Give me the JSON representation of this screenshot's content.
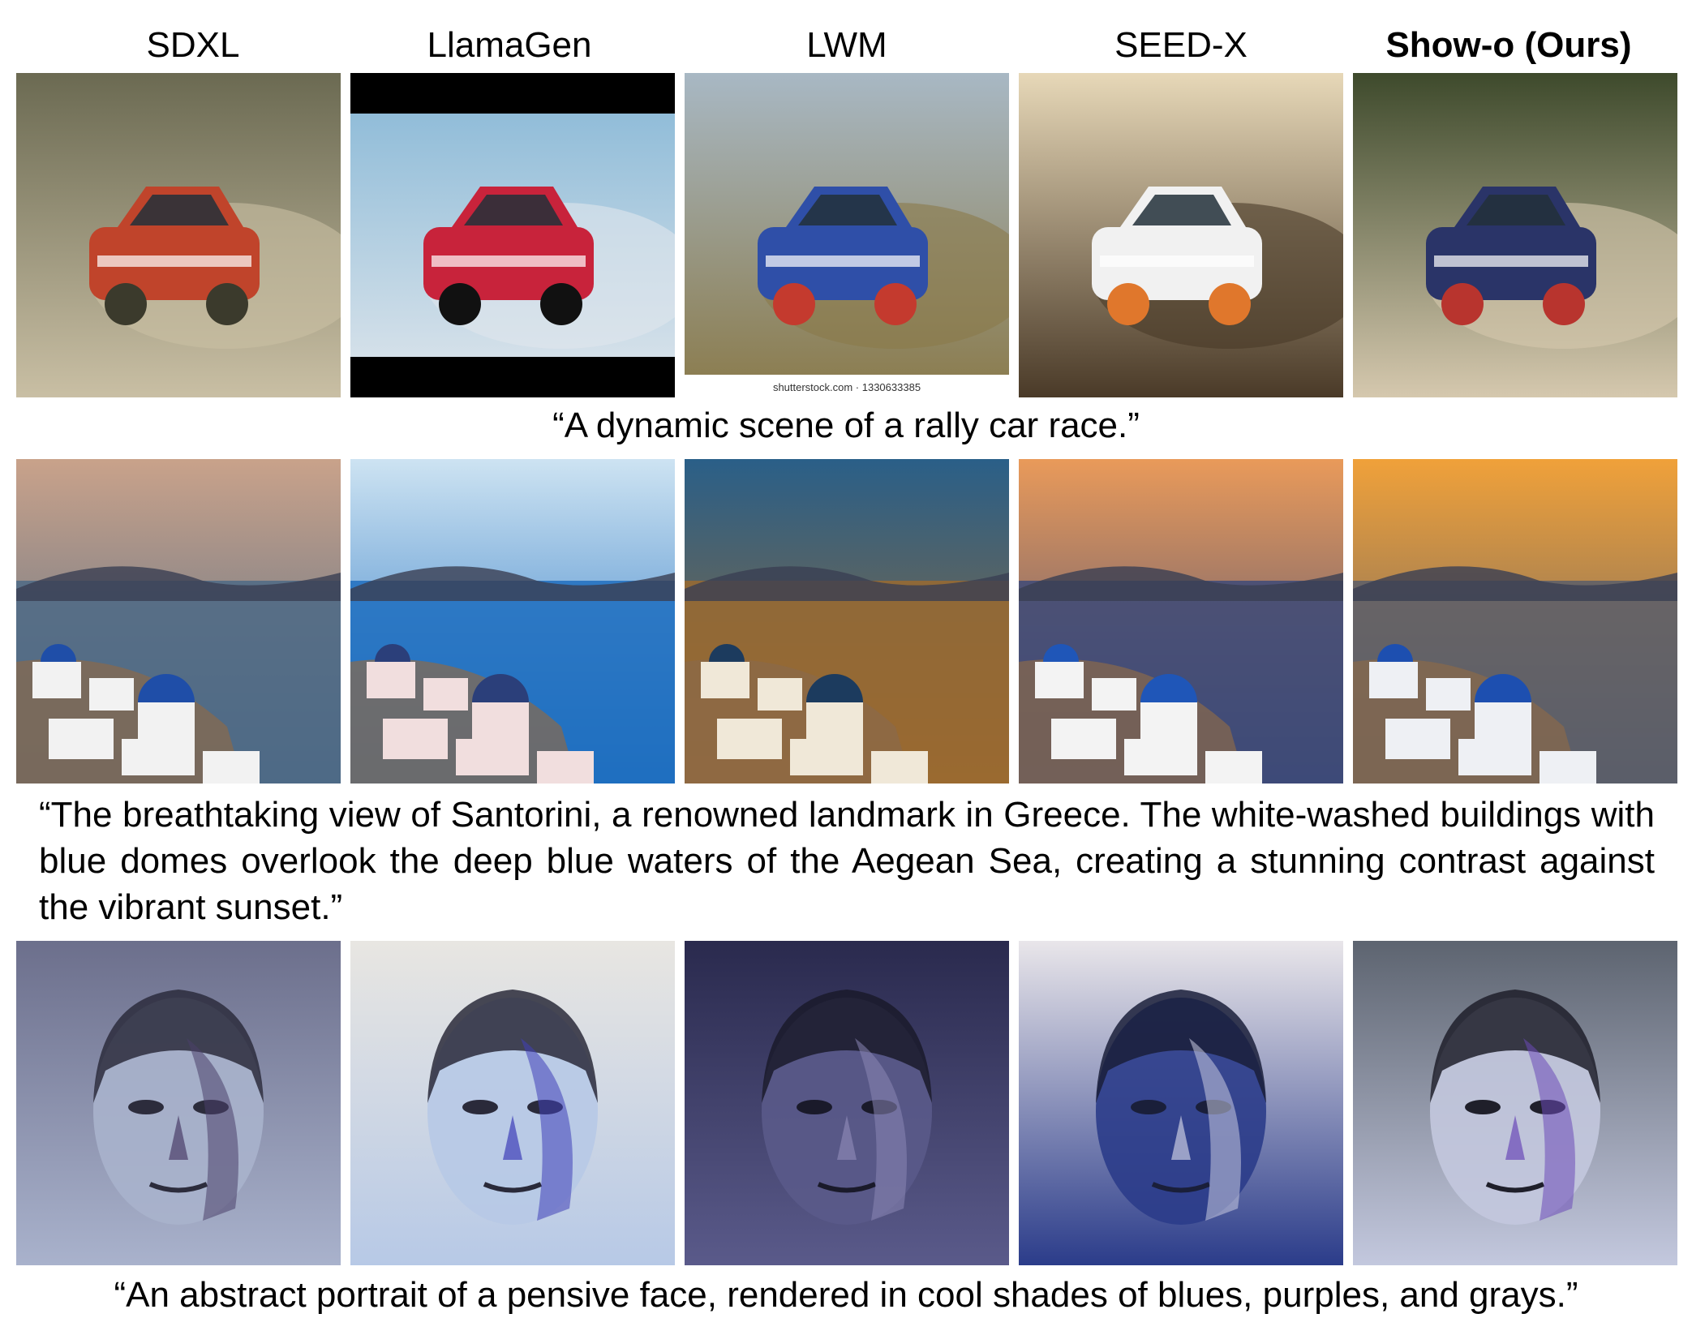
{
  "columns": [
    {
      "label": "SDXL",
      "bold": false
    },
    {
      "label": "LlamaGen",
      "bold": false
    },
    {
      "label": "LWM",
      "bold": false
    },
    {
      "label": "SEED-X",
      "bold": false
    },
    {
      "label": "Show-o (Ours)",
      "bold": true
    }
  ],
  "rows": [
    {
      "caption": "“A dynamic scene of a rally car race.”",
      "images": [
        {
          "subject": "rally-car",
          "palette": [
            "#6b6a52",
            "#c9bfa4",
            "#c0442b",
            "#3b3a2c"
          ]
        },
        {
          "subject": "rally-car",
          "palette": [
            "#86b7d6",
            "#dfe6ec",
            "#c8233b",
            "#111111"
          ]
        },
        {
          "subject": "rally-car",
          "palette": [
            "#a8b8c4",
            "#8a7a4a",
            "#2f4fa8",
            "#c43a2e"
          ],
          "watermark": "shutterstock.com · 1330633385"
        },
        {
          "subject": "rally-car",
          "palette": [
            "#e7d8b8",
            "#4a3a28",
            "#f1f1f1",
            "#e0772c"
          ]
        },
        {
          "subject": "rally-car",
          "palette": [
            "#3e4a2c",
            "#d5c8ae",
            "#2a3468",
            "#b8342e"
          ]
        }
      ]
    },
    {
      "caption": "“The breathtaking view of Santorini, a renowned landmark in Greece. The white-washed buildings with blue domes overlook the deep blue waters of the Aegean Sea, creating a stunning contrast against the vibrant sunset.”",
      "images": [
        {
          "subject": "santorini",
          "palette": [
            "#c9a28a",
            "#4d6a86",
            "#f2f2f2",
            "#1f4ea8"
          ]
        },
        {
          "subject": "santorini",
          "palette": [
            "#cde3f2",
            "#1f6fc0",
            "#f1dede",
            "#2b3f7a"
          ]
        },
        {
          "subject": "santorini",
          "palette": [
            "#2a5f88",
            "#9a6a30",
            "#f0e8d8",
            "#1c3b5e"
          ]
        },
        {
          "subject": "santorini",
          "palette": [
            "#e99a5a",
            "#3d4a78",
            "#f3f3f3",
            "#1f56b8"
          ]
        },
        {
          "subject": "santorini",
          "palette": [
            "#f0a13a",
            "#5a5e6a",
            "#eef0f4",
            "#1d4fb0"
          ]
        }
      ]
    },
    {
      "caption": "“An abstract portrait of a pensive face, rendered in cool shades of blues, purples, and grays.”",
      "images": [
        {
          "subject": "portrait",
          "palette": [
            "#6c6f8c",
            "#a9b2cc",
            "#4b3f6a",
            "#2c2c3c"
          ]
        },
        {
          "subject": "portrait",
          "palette": [
            "#e8e6e2",
            "#b7c9e6",
            "#3f3fb8",
            "#2a2a3a"
          ]
        },
        {
          "subject": "portrait",
          "palette": [
            "#2a2a4e",
            "#5a5a8a",
            "#8a86b4",
            "#1a1a2a"
          ]
        },
        {
          "subject": "portrait",
          "palette": [
            "#e9e6ea",
            "#2b3c8a",
            "#c8cbe0",
            "#1a1f3a"
          ]
        },
        {
          "subject": "portrait",
          "palette": [
            "#5d6470",
            "#c3c8de",
            "#6b4ab8",
            "#1f1f2a"
          ]
        }
      ]
    }
  ]
}
